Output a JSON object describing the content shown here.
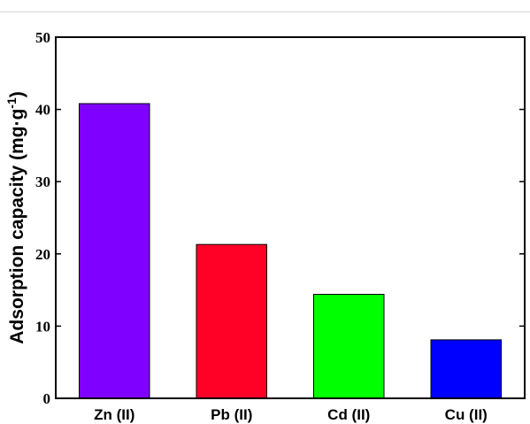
{
  "chart_data": {
    "type": "bar",
    "title": "",
    "xlabel": "",
    "ylabel": {
      "main": "Adsorption capacity (mg·g",
      "superscript": "-1",
      "close": ")"
    },
    "categories": [
      "Zn (II)",
      "Pb (II)",
      "Cd (II)",
      "Cu (II)"
    ],
    "values": [
      40.8,
      21.3,
      14.4,
      8.1
    ],
    "colors": [
      "#8000ff",
      "#ff0027",
      "#00ff00",
      "#0000ff"
    ],
    "ylim": [
      0,
      50
    ],
    "yticks": [
      0,
      10,
      20,
      30,
      40,
      50
    ],
    "grid": false,
    "legend": "none"
  }
}
